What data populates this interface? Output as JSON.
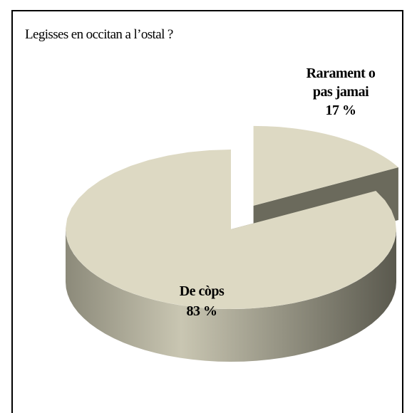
{
  "chart_data": {
    "type": "pie",
    "title": "Legisses en occitan a l’ostal ?",
    "categories": [
      "De còps",
      "Rarament o pas jamai"
    ],
    "values": [
      83,
      17
    ],
    "value_labels": [
      "83 %",
      "17 %"
    ],
    "color": "#ddd9c3"
  }
}
